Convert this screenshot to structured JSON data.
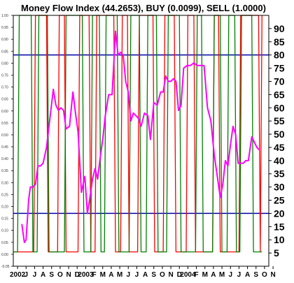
{
  "chart_data": {
    "type": "line",
    "title": "Money Flow Index (44.2653), BUY (0.0099), SELL (1.0000)",
    "xlabel": "",
    "ylabel": "",
    "grid": false,
    "legend": "none",
    "colors": {
      "mfi": "#ff00ff",
      "buy": "#008000",
      "sell": "#ff0000",
      "bands": "#0000aa",
      "frame": "#000000",
      "background": "#ffffff"
    },
    "right_axis": {
      "ylim": [
        0,
        95
      ],
      "ticks": [
        5,
        10,
        15,
        20,
        25,
        30,
        35,
        40,
        45,
        50,
        55,
        60,
        65,
        70,
        75,
        80,
        85,
        90
      ]
    },
    "left_axis": {
      "ylim": [
        -0.05,
        1.0
      ],
      "ticks": [
        "-0.05",
        "0.00",
        "0.05",
        "0.10",
        "0.15",
        "0.20",
        "0.25",
        "0.30",
        "0.35",
        "0.40",
        "0.45",
        "0.50",
        "0.55",
        "0.60",
        "0.65",
        "0.70",
        "0.75",
        "0.80",
        "0.85",
        "0.90",
        "0.95",
        "1.00"
      ]
    },
    "bands": [
      80,
      20
    ],
    "x_ticks": [
      "2002",
      "J",
      "J",
      "A",
      "S",
      "O",
      "N",
      "D",
      "2003",
      "F",
      "M",
      "A",
      "M",
      "J",
      "J",
      "A",
      "S",
      "O",
      "N",
      "D",
      "2004",
      "F",
      "M",
      "A",
      "M",
      "J",
      "J",
      "A",
      "S",
      "O",
      "N"
    ],
    "x_range": [
      0,
      30
    ],
    "series": [
      {
        "key": "mfi",
        "x": [
          1.0,
          1.3,
          1.5,
          1.8,
          2.0,
          2.3,
          2.6,
          2.9,
          3.2,
          3.5,
          3.9,
          4.3,
          4.7,
          5.0,
          5.3,
          5.6,
          5.9,
          6.2,
          6.6,
          7.0,
          7.3,
          7.6,
          8.0,
          8.4,
          8.7,
          9.0,
          9.3,
          9.6,
          9.9,
          10.2,
          10.5,
          10.8,
          11.2,
          11.6,
          12.0,
          12.3,
          12.6,
          12.9,
          13.2,
          13.5,
          13.8,
          14.1,
          14.4,
          14.7,
          15.0,
          15.4,
          15.8,
          16.1,
          16.5,
          16.9,
          17.3,
          17.6,
          17.9,
          18.2,
          18.5,
          18.8,
          19.1,
          19.4,
          19.7,
          20.0,
          20.4,
          20.8,
          21.2,
          21.6,
          22.0,
          22.4,
          22.8,
          23.2,
          23.6,
          24.0,
          24.3,
          24.6,
          24.9,
          25.2,
          25.5,
          25.8,
          26.1,
          26.4,
          26.7,
          27.0,
          27.3,
          27.6,
          28.0,
          28.3,
          28.6,
          28.9
        ],
        "values": [
          16,
          9,
          10,
          25,
          30,
          30,
          31,
          38,
          38,
          39,
          45,
          56,
          67,
          61,
          59,
          60,
          59,
          52,
          53,
          66,
          58,
          51,
          28,
          34,
          20,
          26,
          33,
          37,
          33,
          41,
          48,
          57,
          65,
          65,
          89,
          80,
          81,
          80,
          70,
          66,
          55,
          58,
          57,
          56,
          53,
          58,
          57,
          48,
          62,
          61,
          66,
          66,
          72,
          70,
          70,
          71,
          70,
          59,
          61,
          75,
          76,
          76,
          77,
          76,
          76,
          76,
          60,
          55,
          42,
          33,
          26,
          31,
          40,
          38,
          46,
          53,
          50,
          39,
          39,
          39,
          40,
          40,
          49,
          47,
          45,
          44
        ]
      },
      {
        "key": "buy",
        "x": [
          0.0,
          0.5,
          0.7,
          2.1,
          2.3,
          2.8,
          3.0,
          4.0,
          4.2,
          6.0,
          6.2,
          8.1,
          8.3,
          9.1,
          9.3,
          10.1,
          10.3,
          10.7,
          10.9,
          12.2,
          12.4,
          13.6,
          13.8,
          14.8,
          15.0,
          15.6,
          15.8,
          16.8,
          17.0,
          18.0,
          18.2,
          19.5,
          19.7,
          21.4,
          21.6,
          22.1,
          22.3,
          23.4,
          23.6,
          24.3,
          24.5,
          25.1,
          25.3,
          26.0,
          26.2,
          26.6,
          26.8,
          28.0,
          28.2,
          29.2
        ],
        "values": [
          0.01,
          0.01,
          1.0,
          1.0,
          0.01,
          0.01,
          1.0,
          1.0,
          0.01,
          0.01,
          1.0,
          1.0,
          0.01,
          0.01,
          1.0,
          1.0,
          0.01,
          0.01,
          1.0,
          1.0,
          0.01,
          0.01,
          1.0,
          1.0,
          0.01,
          0.01,
          1.0,
          1.0,
          0.01,
          0.01,
          1.0,
          1.0,
          0.01,
          0.01,
          1.0,
          1.0,
          0.01,
          0.01,
          1.0,
          1.0,
          0.01,
          0.01,
          1.0,
          1.0,
          0.01,
          0.01,
          1.0,
          1.0,
          0.01,
          0.0099
        ]
      },
      {
        "key": "sell",
        "x": [
          0.0,
          2.4,
          2.6,
          3.9,
          4.1,
          5.2,
          5.4,
          6.0,
          6.2,
          7.6,
          7.8,
          8.9,
          9.1,
          9.6,
          9.8,
          11.8,
          12.0,
          12.6,
          12.8,
          13.4,
          13.6,
          14.6,
          14.8,
          16.4,
          16.6,
          17.6,
          17.8,
          18.9,
          19.1,
          20.3,
          20.5,
          21.2,
          21.4,
          23.4,
          23.6,
          24.1,
          24.3,
          26.5,
          26.7,
          28.8,
          29.0,
          29.2
        ],
        "values": [
          0.01,
          0.01,
          1.0,
          1.0,
          0.01,
          0.01,
          1.0,
          1.0,
          0.01,
          0.01,
          1.0,
          1.0,
          0.01,
          0.01,
          1.0,
          1.0,
          0.01,
          0.01,
          1.0,
          1.0,
          0.01,
          0.01,
          1.0,
          1.0,
          0.01,
          0.01,
          1.0,
          1.0,
          0.01,
          0.01,
          1.0,
          1.0,
          0.01,
          0.01,
          1.0,
          1.0,
          0.01,
          0.01,
          1.0,
          1.0,
          0.01,
          1.0
        ]
      }
    ]
  }
}
